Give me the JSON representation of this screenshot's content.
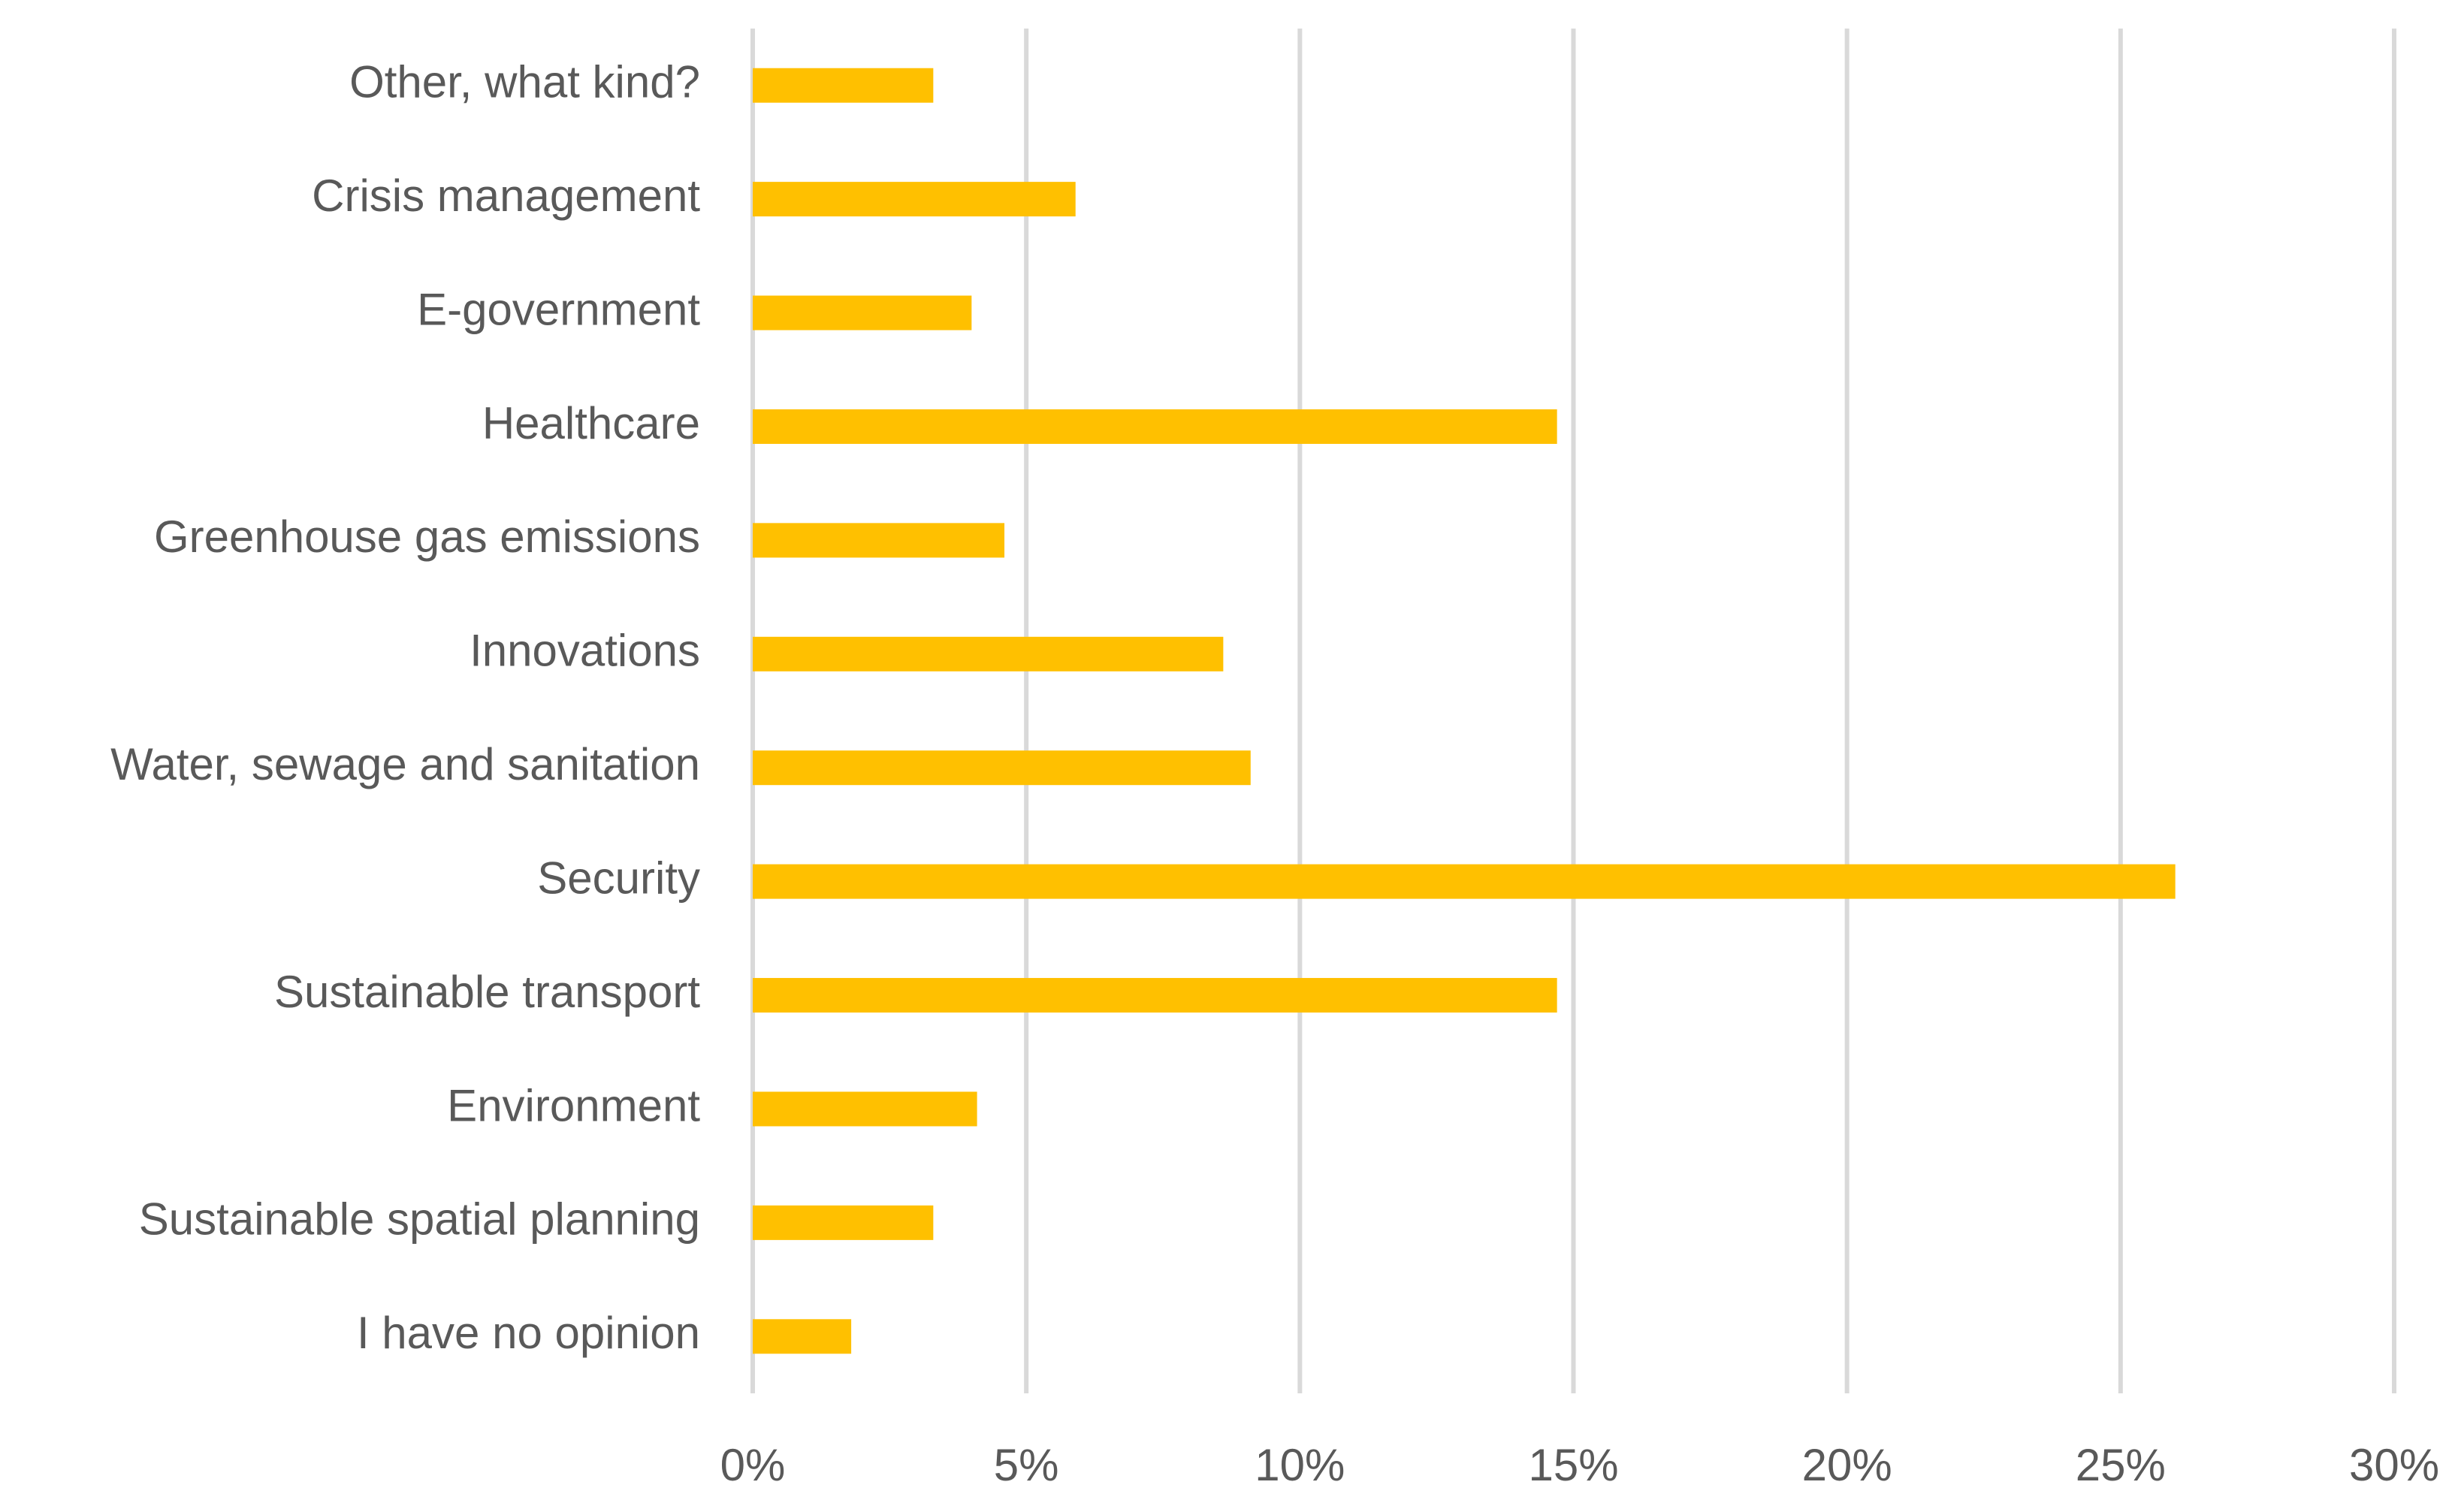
{
  "chart_data": {
    "type": "hbar",
    "categories": [
      "Other, what kind?",
      "Crisis management",
      "E-government",
      "Healthcare",
      "Greenhouse gas emissions",
      "Innovations",
      "Water, sewage and sanitation",
      "Security",
      "Sustainable transport",
      "Environment",
      "Sustainable spatial planning",
      "I have no opinion"
    ],
    "values": [
      3.3,
      5.9,
      4.0,
      14.7,
      4.6,
      8.6,
      9.1,
      26.0,
      14.7,
      4.1,
      3.3,
      1.8
    ],
    "color": "#FFC000",
    "xlim": [
      0,
      30
    ],
    "xticks": [
      {
        "value": 0,
        "label": "0%"
      },
      {
        "value": 5,
        "label": "5%"
      },
      {
        "value": 10,
        "label": "10%"
      },
      {
        "value": 15,
        "label": "15%"
      },
      {
        "value": 20,
        "label": "20%"
      },
      {
        "value": 25,
        "label": "25%"
      },
      {
        "value": 30,
        "label": "30%"
      }
    ],
    "grid": true
  }
}
